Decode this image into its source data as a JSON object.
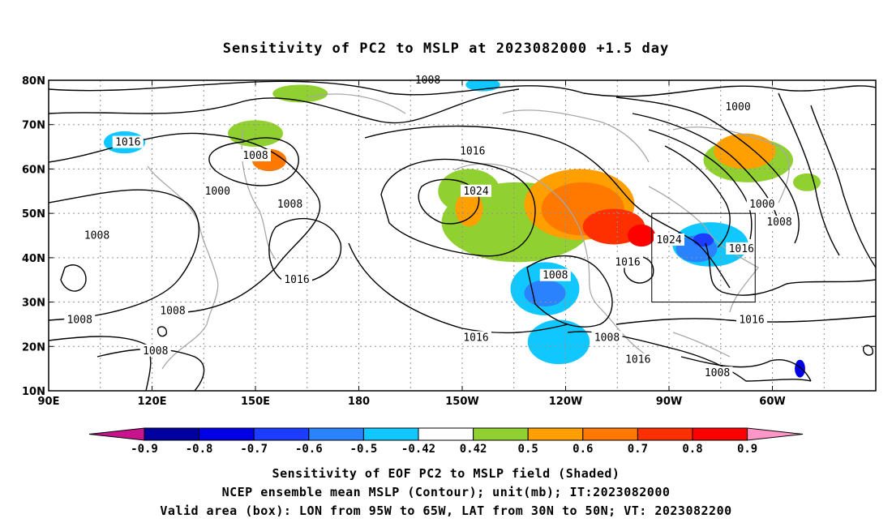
{
  "title": "Sensitivity of PC2 to MSLP at 2023082000 +1.5 day",
  "captions": [
    "Sensitivity of EOF PC2 to MSLP field (Shaded)",
    "NCEP ensemble mean MSLP (Contour); unit(mb); IT:2023082000",
    "Valid area (box): LON from 95W to 65W, LAT from 30N to 50N; VT: 2023082200"
  ],
  "map": {
    "lon_range": [
      90,
      330
    ],
    "lat_range": [
      10,
      80
    ],
    "lat_ticks": [
      {
        "lat": 80,
        "label": "80N"
      },
      {
        "lat": 70,
        "label": "70N"
      },
      {
        "lat": 60,
        "label": "60N"
      },
      {
        "lat": 50,
        "label": "50N"
      },
      {
        "lat": 40,
        "label": "40N"
      },
      {
        "lat": 30,
        "label": "30N"
      },
      {
        "lat": 20,
        "label": "20N"
      },
      {
        "lat": 10,
        "label": "10N"
      }
    ],
    "lon_ticks": [
      {
        "lon": 90,
        "label": "90E"
      },
      {
        "lon": 120,
        "label": "120E"
      },
      {
        "lon": 150,
        "label": "150E"
      },
      {
        "lon": 180,
        "label": "180"
      },
      {
        "lon": 210,
        "label": "150W"
      },
      {
        "lon": 240,
        "label": "120W"
      },
      {
        "lon": 270,
        "label": "90W"
      },
      {
        "lon": 300,
        "label": "60W"
      }
    ],
    "grid_lons": [
      90,
      105,
      120,
      135,
      150,
      165,
      180,
      195,
      210,
      225,
      240,
      255,
      270,
      285,
      300,
      315
    ],
    "grid_lats": [
      20,
      30,
      40,
      50,
      60,
      70
    ],
    "box": {
      "lon": [
        265,
        295
      ],
      "lat": [
        30,
        50
      ]
    },
    "contour_labels": [
      {
        "lon": 200,
        "lat": 80,
        "text": "1008"
      },
      {
        "lon": 290,
        "lat": 74,
        "text": "1000"
      },
      {
        "lon": 113,
        "lat": 66,
        "text": "1016"
      },
      {
        "lon": 150,
        "lat": 63,
        "text": "1008"
      },
      {
        "lon": 213,
        "lat": 64,
        "text": "1016"
      },
      {
        "lon": 139,
        "lat": 55,
        "text": "1000"
      },
      {
        "lon": 214,
        "lat": 55,
        "text": "1024"
      },
      {
        "lon": 297,
        "lat": 52,
        "text": "1000"
      },
      {
        "lon": 160,
        "lat": 52,
        "text": "1008"
      },
      {
        "lon": 302,
        "lat": 48,
        "text": "1008"
      },
      {
        "lon": 104,
        "lat": 45,
        "text": "1008"
      },
      {
        "lon": 270,
        "lat": 44,
        "text": "1024"
      },
      {
        "lon": 291,
        "lat": 42,
        "text": "1016"
      },
      {
        "lon": 258,
        "lat": 39,
        "text": "1016"
      },
      {
        "lon": 162,
        "lat": 35,
        "text": "1016"
      },
      {
        "lon": 237,
        "lat": 36,
        "text": "1008"
      },
      {
        "lon": 126,
        "lat": 28,
        "text": "1008"
      },
      {
        "lon": 99,
        "lat": 26,
        "text": "1008"
      },
      {
        "lon": 294,
        "lat": 26,
        "text": "1016"
      },
      {
        "lon": 214,
        "lat": 22,
        "text": "1016"
      },
      {
        "lon": 252,
        "lat": 22,
        "text": "1008"
      },
      {
        "lon": 121,
        "lat": 19,
        "text": "1008"
      },
      {
        "lon": 261,
        "lat": 17,
        "text": "1016"
      },
      {
        "lon": 284,
        "lat": 14,
        "text": "1008"
      }
    ]
  },
  "colorbar": {
    "labels": [
      "-0.9",
      "-0.8",
      "-0.7",
      "-0.6",
      "-0.5",
      "-0.42",
      "0.42",
      "0.5",
      "0.6",
      "0.7",
      "0.8",
      "0.9"
    ],
    "colors": [
      "#0000a0",
      "#0000e6",
      "#1c3cff",
      "#2a82ff",
      "#10c8ff",
      "#ffffff",
      "#90d030",
      "#ffa000",
      "#ff7800",
      "#ff3000",
      "#ff0000"
    ],
    "end_low": "#c8148c",
    "end_high": "#ff96c8"
  },
  "shading": [
    {
      "color": "#90d030",
      "lon": 226,
      "lat": 48,
      "rx": 22,
      "ry": 9
    },
    {
      "color": "#90d030",
      "lon": 212,
      "lat": 55,
      "rx": 9,
      "ry": 5
    },
    {
      "color": "#90d030",
      "lon": 293,
      "lat": 62,
      "rx": 13,
      "ry": 5
    },
    {
      "color": "#90d030",
      "lon": 150,
      "lat": 68,
      "rx": 8,
      "ry": 3
    },
    {
      "color": "#90d030",
      "lon": 163,
      "lat": 77,
      "rx": 8,
      "ry": 2
    },
    {
      "color": "#90d030",
      "lon": 310,
      "lat": 57,
      "rx": 4,
      "ry": 2
    },
    {
      "color": "#ffa000",
      "lon": 244,
      "lat": 52,
      "rx": 16,
      "ry": 8
    },
    {
      "color": "#ffa000",
      "lon": 292,
      "lat": 64,
      "rx": 9,
      "ry": 4
    },
    {
      "color": "#ffa000",
      "lon": 212,
      "lat": 51,
      "rx": 4,
      "ry": 4
    },
    {
      "color": "#ff7800",
      "lon": 245,
      "lat": 51,
      "rx": 12,
      "ry": 6
    },
    {
      "color": "#ff7800",
      "lon": 154,
      "lat": 62,
      "rx": 5,
      "ry": 2.5
    },
    {
      "color": "#ff3000",
      "lon": 254,
      "lat": 47,
      "rx": 9,
      "ry": 4
    },
    {
      "color": "#ff0000",
      "lon": 262,
      "lat": 45,
      "rx": 4,
      "ry": 2.5
    },
    {
      "color": "#10c8ff",
      "lon": 234,
      "lat": 33,
      "rx": 10,
      "ry": 6
    },
    {
      "color": "#10c8ff",
      "lon": 238,
      "lat": 21,
      "rx": 9,
      "ry": 5
    },
    {
      "color": "#10c8ff",
      "lon": 282,
      "lat": 43,
      "rx": 11,
      "ry": 5
    },
    {
      "color": "#10c8ff",
      "lon": 112,
      "lat": 66,
      "rx": 6,
      "ry": 2.5
    },
    {
      "color": "#10c8ff",
      "lon": 216,
      "lat": 79,
      "rx": 5,
      "ry": 1.5
    },
    {
      "color": "#2a82ff",
      "lon": 234,
      "lat": 32,
      "rx": 6,
      "ry": 3
    },
    {
      "color": "#2a82ff",
      "lon": 278,
      "lat": 42,
      "rx": 6,
      "ry": 3
    },
    {
      "color": "#1c3cff",
      "lon": 280,
      "lat": 44,
      "rx": 3,
      "ry": 1.5
    },
    {
      "color": "#0000e6",
      "lon": 308,
      "lat": 15,
      "rx": 1.5,
      "ry": 2
    }
  ]
}
